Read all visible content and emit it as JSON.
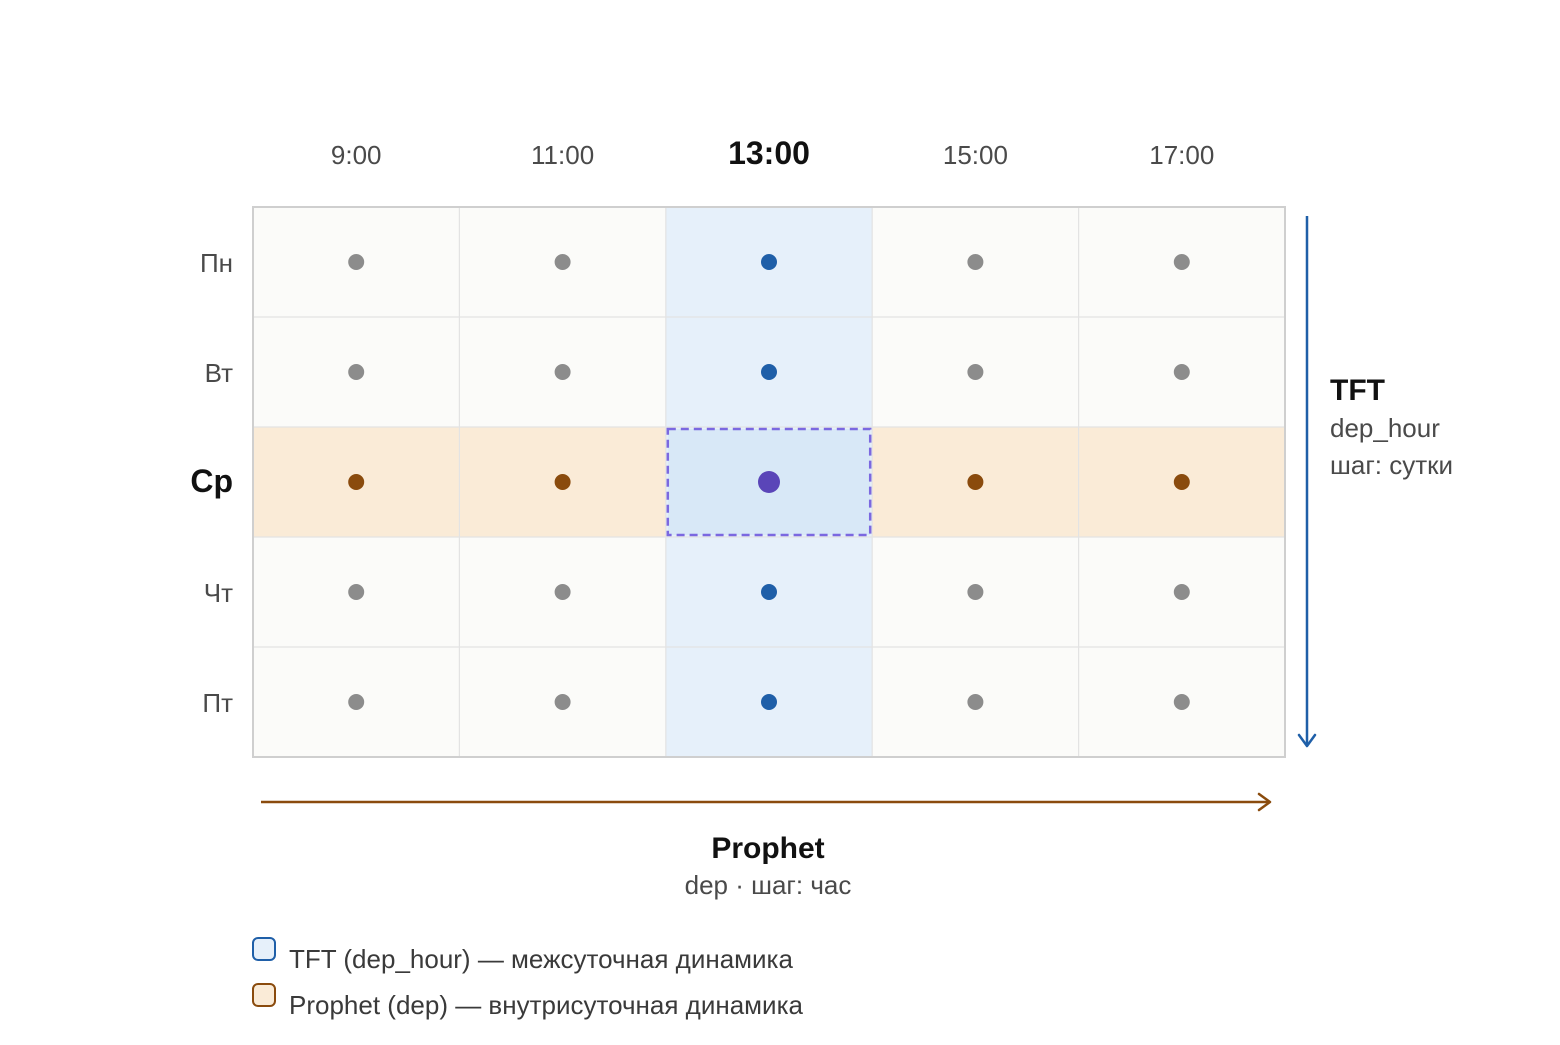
{
  "columns": [
    "9:00",
    "11:00",
    "13:00",
    "15:00",
    "17:00"
  ],
  "rows": [
    "Пн",
    "Вт",
    "Ср",
    "Чт",
    "Пт"
  ],
  "highlight": {
    "column": "13:00",
    "row": "Ср"
  },
  "tft": {
    "title": "TFT",
    "var": "dep_hour",
    "step": "шаг: сутки"
  },
  "prophet": {
    "title": "Prophet",
    "sub": "dep · шаг: час"
  },
  "legend": [
    {
      "label": "TFT (dep_hour) — межсуточная динамика"
    },
    {
      "label": "Prophet (dep) — внутрисуточная динамика"
    }
  ],
  "colors": {
    "tft": "#1f5fa8",
    "prophet": "#8a4b0d",
    "intersection": "#5a45b8",
    "neutral": "#8c8c8c",
    "tft_band": "#e6f0fa",
    "prophet_band": "#faebd7",
    "intersection_fill": "#d8e8f7",
    "cell_bg": "#fbfbf9",
    "grid": "#e3e3e3",
    "border": "#cfcfcf"
  }
}
